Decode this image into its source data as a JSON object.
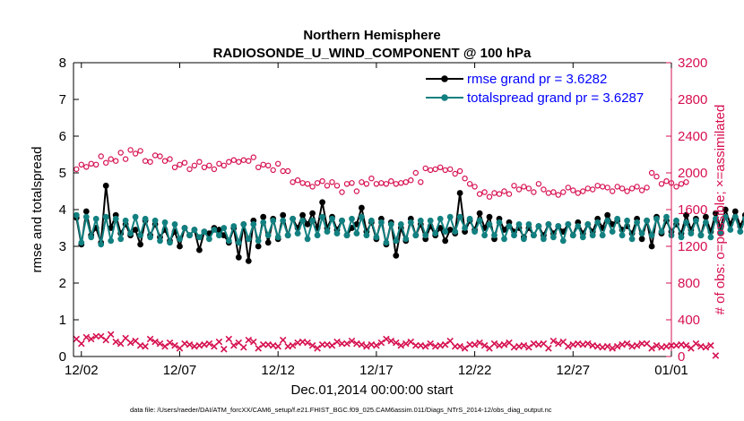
{
  "chart_data": {
    "type": "line",
    "title": "Northern Hemisphere",
    "subtitle": "RADIOSONDE_U_WIND_COMPONENT @ 100 hPa",
    "xlabel": "Dec.01,2014 00:00:00 start",
    "ylabel_left": "rmse and totalspread",
    "ylabel_right": "# of obs: o=possible; ×=assimilated",
    "x_tick_labels": [
      "12/02",
      "12/07",
      "12/12",
      "12/17",
      "12/22",
      "12/27",
      "01/01"
    ],
    "x_tick_days": [
      1,
      6,
      11,
      16,
      21,
      26,
      31
    ],
    "xlim": [
      0.6,
      31
    ],
    "ylim_left": [
      0,
      8
    ],
    "yticks_left": [
      "0",
      "1",
      "2",
      "3",
      "4",
      "5",
      "6",
      "7",
      "8"
    ],
    "ylim_right": [
      0,
      3200
    ],
    "yticks_right": [
      "0",
      "400",
      "800",
      "1200",
      "1600",
      "2000",
      "2400",
      "2800",
      "3200"
    ],
    "legend": {
      "position": "top-right",
      "entries": [
        {
          "label": "rmse grand pr = 3.6282",
          "color": "#000000"
        },
        {
          "label": "totalspread grand pr = 3.6287",
          "color": "#128080"
        }
      ]
    },
    "colors": {
      "rmse": "#000000",
      "spread": "#128080",
      "obs": "#d6104f"
    },
    "day_step": 0.25,
    "x_start": 0.75,
    "series": [
      {
        "name": "rmse",
        "axis": "left",
        "values": [
          3.78,
          3.05,
          3.95,
          3.3,
          3.5,
          3.1,
          4.65,
          3.5,
          3.85,
          3.35,
          3.6,
          3.3,
          3.45,
          3.05,
          3.7,
          3.3,
          3.6,
          3.25,
          3.45,
          3.15,
          3.4,
          3.0,
          3.5,
          3.3,
          3.45,
          2.9,
          3.4,
          3.35,
          3.5,
          3.45,
          3.3,
          3.1,
          3.5,
          2.7,
          3.6,
          2.6,
          3.7,
          3.0,
          3.8,
          3.1,
          3.75,
          3.2,
          3.85,
          3.3,
          3.75,
          3.5,
          3.85,
          3.6,
          3.9,
          3.5,
          4.2,
          3.5,
          3.8,
          3.45,
          3.7,
          3.3,
          3.5,
          3.6,
          4.05,
          3.4,
          3.65,
          3.2,
          3.75,
          3.05,
          3.65,
          2.75,
          3.5,
          3.15,
          3.75,
          3.3,
          3.6,
          3.2,
          3.55,
          3.3,
          3.5,
          3.15,
          3.45,
          3.35,
          4.45,
          3.4,
          3.7,
          3.45,
          3.9,
          3.5,
          3.8,
          3.2,
          3.75,
          3.45,
          3.65,
          3.4,
          3.5,
          3.25,
          3.5,
          3.3,
          3.55,
          3.3,
          3.6,
          3.35,
          3.55,
          3.4,
          3.6,
          3.3,
          3.65,
          3.35,
          3.6,
          3.4,
          3.75,
          3.5,
          3.85,
          3.6,
          3.7,
          3.45,
          3.55,
          3.35,
          3.75,
          3.2,
          3.7,
          3.0,
          3.8,
          3.35,
          3.7,
          3.4,
          3.6,
          3.35,
          3.85,
          3.45,
          3.75,
          3.3,
          3.8,
          3.4,
          3.9,
          3.5,
          4.0,
          3.6,
          3.95,
          3.55,
          3.85,
          3.5,
          3.9,
          3.45,
          3.8,
          3.5,
          3.75,
          3.6,
          3.7,
          3.5,
          3.65
        ]
      },
      {
        "name": "totalspread",
        "axis": "left",
        "values": [
          3.85,
          3.1,
          3.8,
          3.25,
          3.75,
          3.05,
          3.8,
          3.15,
          3.75,
          3.2,
          3.7,
          3.35,
          3.8,
          3.3,
          3.75,
          3.25,
          3.7,
          3.15,
          3.65,
          3.1,
          3.6,
          3.2,
          3.5,
          3.3,
          3.45,
          3.25,
          3.4,
          3.2,
          3.45,
          3.3,
          3.5,
          3.15,
          3.55,
          3.1,
          3.6,
          3.2,
          3.6,
          3.15,
          3.65,
          3.3,
          3.7,
          3.25,
          3.7,
          3.3,
          3.75,
          3.35,
          3.7,
          3.2,
          3.7,
          3.3,
          3.8,
          3.4,
          3.75,
          3.35,
          3.7,
          3.3,
          3.75,
          3.35,
          3.8,
          3.3,
          3.7,
          3.25,
          3.65,
          3.1,
          3.6,
          3.15,
          3.6,
          3.2,
          3.65,
          3.3,
          3.7,
          3.3,
          3.7,
          3.35,
          3.75,
          3.4,
          3.8,
          3.4,
          3.8,
          3.5,
          3.75,
          3.4,
          3.7,
          3.3,
          3.6,
          3.3,
          3.65,
          3.2,
          3.55,
          3.3,
          3.6,
          3.2,
          3.6,
          3.3,
          3.55,
          3.2,
          3.6,
          3.25,
          3.55,
          3.15,
          3.6,
          3.3,
          3.55,
          3.25,
          3.6,
          3.3,
          3.65,
          3.3,
          3.7,
          3.4,
          3.75,
          3.3,
          3.7,
          3.2,
          3.65,
          3.35,
          3.7,
          3.3,
          3.75,
          3.4,
          3.8,
          3.3,
          3.7,
          3.25,
          3.65,
          3.35,
          3.7,
          3.3,
          3.65,
          3.25,
          3.75,
          3.35,
          3.8,
          3.45,
          3.8,
          3.4,
          3.75,
          3.45,
          3.8,
          3.4,
          3.7,
          3.4,
          3.7,
          3.35,
          3.7,
          3.3,
          3.1
        ]
      },
      {
        "name": "obs_possible",
        "axis": "right",
        "marker": "circle",
        "values": [
          2040,
          2090,
          2065,
          2100,
          2090,
          2180,
          2110,
          2150,
          2130,
          2220,
          2150,
          2250,
          2210,
          2240,
          2130,
          2120,
          2190,
          2180,
          2130,
          2150,
          2060,
          2090,
          2110,
          2040,
          2080,
          2120,
          2060,
          2080,
          2040,
          2100,
          2080,
          2120,
          2140,
          2120,
          2140,
          2130,
          2170,
          2060,
          2090,
          2080,
          2030,
          2100,
          2020,
          2020,
          1900,
          1920,
          1890,
          1880,
          1850,
          1890,
          1910,
          1860,
          1900,
          1860,
          1790,
          1880,
          1890,
          1800,
          1900,
          1880,
          1940,
          1880,
          1890,
          1880,
          1910,
          1880,
          1890,
          1900,
          1920,
          2000,
          1900,
          2050,
          2030,
          2040,
          2060,
          2030,
          2040,
          1990,
          2020,
          1940,
          1880,
          1850,
          1770,
          1790,
          1740,
          1780,
          1770,
          1800,
          1770,
          1860,
          1820,
          1850,
          1830,
          1790,
          1880,
          1820,
          1780,
          1790,
          1760,
          1790,
          1840,
          1810,
          1780,
          1800,
          1830,
          1820,
          1860,
          1850,
          1840,
          1800,
          1850,
          1830,
          1800,
          1830,
          1850,
          1810,
          1840,
          2000,
          1960,
          1880,
          1910,
          1890,
          1850,
          1880,
          1900
        ]
      },
      {
        "name": "obs_assimilated",
        "axis": "right",
        "marker": "x",
        "values": [
          190,
          140,
          210,
          190,
          220,
          220,
          180,
          240,
          160,
          140,
          200,
          150,
          170,
          120,
          110,
          190,
          160,
          140,
          110,
          150,
          120,
          90,
          140,
          130,
          110,
          120,
          130,
          140,
          110,
          160,
          80,
          190,
          120,
          150,
          100,
          180,
          160,
          90,
          130,
          130,
          120,
          110,
          180,
          110,
          120,
          150,
          160,
          150,
          120,
          90,
          130,
          130,
          120,
          160,
          140,
          140,
          170,
          140,
          130,
          110,
          130,
          120,
          150,
          190,
          170,
          150,
          120,
          140,
          160,
          120,
          120,
          110,
          140,
          110,
          120,
          130,
          170,
          110,
          110,
          90,
          130,
          130,
          150,
          120,
          90,
          140,
          120,
          130,
          150,
          100,
          110,
          120,
          100,
          140,
          130,
          140,
          90,
          170,
          140,
          160,
          110,
          130,
          140,
          130,
          140,
          120,
          110,
          100,
          110,
          90,
          110,
          130,
          140,
          110,
          120,
          140,
          140,
          90,
          120,
          100,
          110,
          120,
          120,
          130,
          120,
          90,
          140,
          110,
          100,
          120,
          10
        ]
      }
    ],
    "footnote": "data file: /Users/raeder/DAI/ATM_forcXX/CAM6_setup/f.e21.FHIST_BGC.f09_025.CAM6assim.011/Diags_NTrS_2014-12/obs_diag_output.nc"
  }
}
